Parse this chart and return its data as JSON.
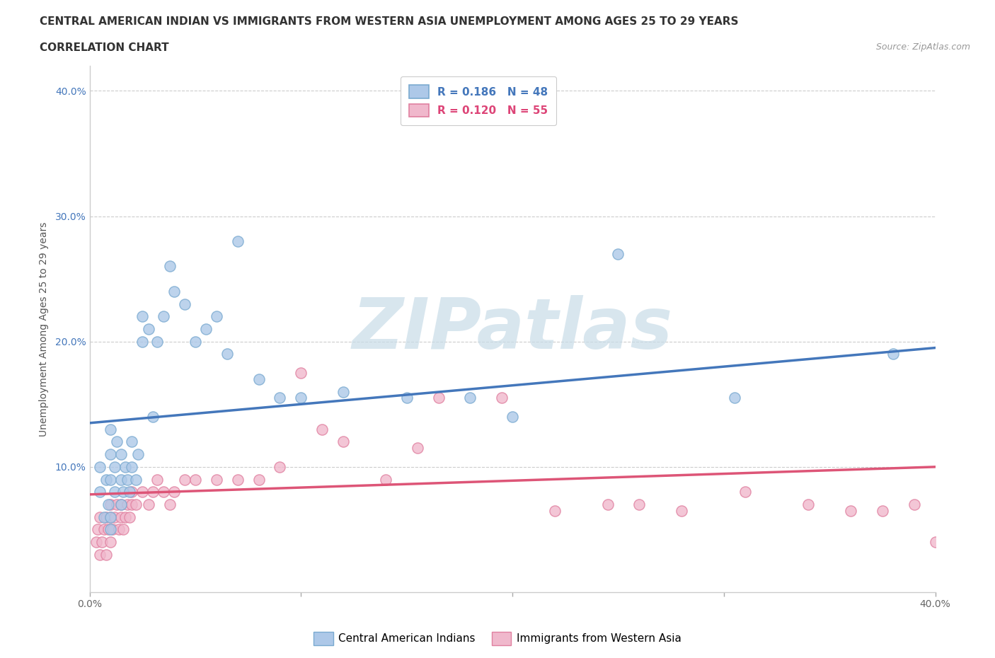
{
  "title_line1": "CENTRAL AMERICAN INDIAN VS IMMIGRANTS FROM WESTERN ASIA UNEMPLOYMENT AMONG AGES 25 TO 29 YEARS",
  "title_line2": "CORRELATION CHART",
  "source_text": "Source: ZipAtlas.com",
  "ylabel": "Unemployment Among Ages 25 to 29 years",
  "xlim": [
    0.0,
    0.4
  ],
  "ylim": [
    0.0,
    0.42
  ],
  "xticks": [
    0.0,
    0.1,
    0.2,
    0.3,
    0.4
  ],
  "yticks": [
    0.1,
    0.2,
    0.3,
    0.4
  ],
  "grid_color": "#cccccc",
  "background_color": "#ffffff",
  "watermark_text": "ZIPatlas",
  "watermark_color": "#d8e8f0",
  "blue_color": "#adc8e8",
  "blue_edge": "#7aaad0",
  "pink_color": "#f0b8cc",
  "pink_edge": "#e080a0",
  "blue_line_color": "#4477bb",
  "pink_line_color": "#dd5577",
  "blue_scatter_x": [
    0.005,
    0.005,
    0.007,
    0.008,
    0.009,
    0.01,
    0.01,
    0.01,
    0.01,
    0.01,
    0.012,
    0.012,
    0.013,
    0.015,
    0.015,
    0.015,
    0.016,
    0.017,
    0.018,
    0.019,
    0.02,
    0.02,
    0.022,
    0.023,
    0.025,
    0.025,
    0.028,
    0.03,
    0.032,
    0.035,
    0.038,
    0.04,
    0.045,
    0.05,
    0.055,
    0.06,
    0.065,
    0.07,
    0.08,
    0.09,
    0.1,
    0.12,
    0.15,
    0.18,
    0.2,
    0.25,
    0.305,
    0.38
  ],
  "blue_scatter_y": [
    0.08,
    0.1,
    0.06,
    0.09,
    0.07,
    0.05,
    0.06,
    0.09,
    0.11,
    0.13,
    0.08,
    0.1,
    0.12,
    0.07,
    0.09,
    0.11,
    0.08,
    0.1,
    0.09,
    0.08,
    0.1,
    0.12,
    0.09,
    0.11,
    0.2,
    0.22,
    0.21,
    0.14,
    0.2,
    0.22,
    0.26,
    0.24,
    0.23,
    0.2,
    0.21,
    0.22,
    0.19,
    0.28,
    0.17,
    0.155,
    0.155,
    0.16,
    0.155,
    0.155,
    0.14,
    0.27,
    0.155,
    0.19
  ],
  "pink_scatter_x": [
    0.003,
    0.004,
    0.005,
    0.005,
    0.006,
    0.007,
    0.008,
    0.008,
    0.009,
    0.01,
    0.01,
    0.01,
    0.011,
    0.012,
    0.013,
    0.014,
    0.015,
    0.015,
    0.016,
    0.017,
    0.018,
    0.019,
    0.02,
    0.02,
    0.022,
    0.025,
    0.028,
    0.03,
    0.032,
    0.035,
    0.038,
    0.04,
    0.045,
    0.05,
    0.06,
    0.07,
    0.08,
    0.09,
    0.1,
    0.11,
    0.12,
    0.14,
    0.155,
    0.165,
    0.195,
    0.22,
    0.245,
    0.26,
    0.28,
    0.31,
    0.34,
    0.36,
    0.375,
    0.39,
    0.4
  ],
  "pink_scatter_y": [
    0.04,
    0.05,
    0.03,
    0.06,
    0.04,
    0.05,
    0.03,
    0.06,
    0.05,
    0.04,
    0.06,
    0.07,
    0.05,
    0.06,
    0.07,
    0.05,
    0.06,
    0.07,
    0.05,
    0.06,
    0.07,
    0.06,
    0.07,
    0.08,
    0.07,
    0.08,
    0.07,
    0.08,
    0.09,
    0.08,
    0.07,
    0.08,
    0.09,
    0.09,
    0.09,
    0.09,
    0.09,
    0.1,
    0.175,
    0.13,
    0.12,
    0.09,
    0.115,
    0.155,
    0.155,
    0.065,
    0.07,
    0.07,
    0.065,
    0.08,
    0.07,
    0.065,
    0.065,
    0.07,
    0.04
  ],
  "legend_blue_label": "R = 0.186   N = 48",
  "legend_pink_label": "R = 0.120   N = 55",
  "legend_blue_text_color": "#4477bb",
  "legend_pink_text_color": "#dd4477",
  "bottom_legend_blue": "Central American Indians",
  "bottom_legend_pink": "Immigrants from Western Asia",
  "title_fontsize": 11,
  "subtitle_fontsize": 11,
  "axis_label_fontsize": 10,
  "tick_fontsize": 10,
  "legend_fontsize": 11,
  "source_fontsize": 9
}
